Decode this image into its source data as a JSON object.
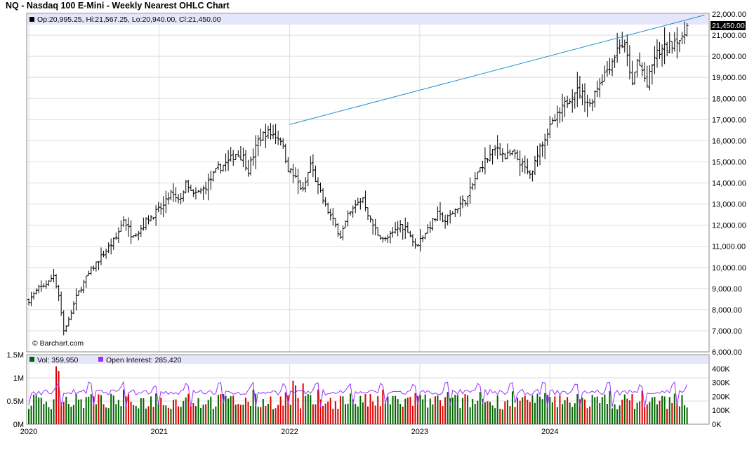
{
  "title": "NQ - Nasdaq 100 E-Mini - Weekly Nearest OHLC Chart",
  "colors": {
    "up_volume": "#006400",
    "down_volume": "#dd0000",
    "open_interest": "#9933ff",
    "trendline": "#1e90d0",
    "legend_band": "#e6e6fa",
    "grid": "#dddddd",
    "price_marker": "#000000"
  },
  "chart_data": [
    {
      "type": "ohlc",
      "name": "price",
      "legend": "Op:20,995.25, Hi:21,567.25, Lo:20,940.00, Cl:21,450.00",
      "last_price_label": "21,450.00",
      "last": {
        "open": 20995.25,
        "high": 21567.25,
        "low": 20940.0,
        "close": 21450.0
      },
      "watermark": "© Barchart.com",
      "ylim": [
        6000,
        22000
      ],
      "y_ticks": [
        6000,
        7000,
        8000,
        9000,
        10000,
        11000,
        12000,
        13000,
        14000,
        15000,
        16000,
        17000,
        18000,
        19000,
        20000,
        21000,
        22000
      ],
      "y_tick_labels": [
        "6,000.00",
        "7,000.00",
        "8,000.00",
        "9,000.00",
        "10,000.00",
        "11,000.00",
        "12,000.00",
        "13,000.00",
        "14,000.00",
        "15,000.00",
        "16,000.00",
        "17,000.00",
        "18,000.00",
        "19,000.00",
        "20,000.00",
        "21,000.00",
        "22,000.00"
      ],
      "x_labels": [
        "2020",
        "2021",
        "2022",
        "2023",
        "2024"
      ],
      "x_label_weeks": [
        0,
        52.3,
        104.6,
        156.8,
        209.0
      ],
      "grid": true,
      "trendline": {
        "from": {
          "week": 104.6,
          "price": 16770
        },
        "to": {
          "week": 271,
          "price": 21950
        }
      },
      "close_path": [
        [
          0,
          8450
        ],
        [
          4,
          9000
        ],
        [
          8,
          9300
        ],
        [
          10,
          9650
        ],
        [
          12,
          8700
        ],
        [
          14,
          7000
        ],
        [
          16,
          7500
        ],
        [
          19,
          8600
        ],
        [
          23,
          9500
        ],
        [
          27,
          10200
        ],
        [
          31,
          10800
        ],
        [
          35,
          11400
        ],
        [
          38,
          12300
        ],
        [
          41,
          11600
        ],
        [
          44,
          11700
        ],
        [
          47,
          12200
        ],
        [
          50,
          12500
        ],
        [
          54,
          12900
        ],
        [
          57,
          13500
        ],
        [
          60,
          13100
        ],
        [
          63,
          13900
        ],
        [
          66,
          13400
        ],
        [
          70,
          13700
        ],
        [
          73,
          14200
        ],
        [
          76,
          14700
        ],
        [
          80,
          15000
        ],
        [
          83,
          15400
        ],
        [
          86,
          15200
        ],
        [
          88,
          14600
        ],
        [
          90,
          15300
        ],
        [
          92,
          16000
        ],
        [
          95,
          16400
        ],
        [
          98,
          16300
        ],
        [
          101,
          16100
        ],
        [
          104,
          14700
        ],
        [
          107,
          14200
        ],
        [
          110,
          13600
        ],
        [
          113,
          14900
        ],
        [
          116,
          13800
        ],
        [
          119,
          12900
        ],
        [
          122,
          12200
        ],
        [
          125,
          11500
        ],
        [
          128,
          12400
        ],
        [
          131,
          12900
        ],
        [
          134,
          13300
        ],
        [
          137,
          12200
        ],
        [
          140,
          11600
        ],
        [
          143,
          11300
        ],
        [
          146,
          11600
        ],
        [
          149,
          12000
        ],
        [
          152,
          11800
        ],
        [
          155,
          11000
        ],
        [
          158,
          11500
        ],
        [
          161,
          12000
        ],
        [
          164,
          12500
        ],
        [
          167,
          12200
        ],
        [
          170,
          12600
        ],
        [
          173,
          13000
        ],
        [
          176,
          13300
        ],
        [
          179,
          14200
        ],
        [
          182,
          14900
        ],
        [
          185,
          15300
        ],
        [
          188,
          15700
        ],
        [
          191,
          15200
        ],
        [
          194,
          15400
        ],
        [
          197,
          15000
        ],
        [
          200,
          14500
        ],
        [
          202,
          14400
        ],
        [
          204,
          15500
        ],
        [
          207,
          16200
        ],
        [
          210,
          16800
        ],
        [
          213,
          17300
        ],
        [
          216,
          17900
        ],
        [
          219,
          18400
        ],
        [
          222,
          18200
        ],
        [
          225,
          17700
        ],
        [
          228,
          18600
        ],
        [
          231,
          19200
        ],
        [
          234,
          19800
        ],
        [
          237,
          20600
        ],
        [
          239,
          20400
        ],
        [
          241,
          19400
        ],
        [
          242,
          18500
        ],
        [
          244,
          19800
        ],
        [
          246,
          19300
        ],
        [
          248,
          18600
        ],
        [
          251,
          20000
        ],
        [
          254,
          20300
        ],
        [
          257,
          20500
        ],
        [
          260,
          20900
        ],
        [
          262,
          20700
        ],
        [
          264,
          21450
        ]
      ]
    },
    {
      "type": "bar",
      "name": "Vol",
      "legend": "Vol: 359,950",
      "last": 359950,
      "ylim": [
        0,
        1500000
      ],
      "y_ticks": [
        0,
        500000,
        1000000,
        1500000
      ],
      "y_tick_labels": [
        "0M",
        "0.5M",
        "1M",
        "1.5M"
      ],
      "spikes": [
        {
          "week": 11,
          "value": 1250000
        },
        {
          "week": 12,
          "value": 1150000
        },
        {
          "week": 106,
          "value": 940000
        },
        {
          "week": 107,
          "value": 840000
        },
        {
          "week": 110,
          "value": 880000
        }
      ],
      "typical_range": [
        320000,
        750000
      ]
    },
    {
      "type": "line",
      "name": "Open Interest",
      "legend": "Open Interest: 285,420",
      "last": 285420,
      "ylim": [
        0,
        500000
      ],
      "y_ticks": [
        0,
        100000,
        200000,
        300000,
        400000
      ],
      "y_tick_labels": [
        "0K",
        "100K",
        "200K",
        "300K",
        "400K"
      ],
      "typical_range": [
        120000,
        285000
      ]
    }
  ]
}
